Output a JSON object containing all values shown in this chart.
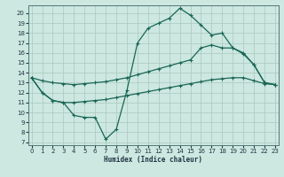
{
  "xlabel": "Humidex (Indice chaleur)",
  "bg_color": "#cce8e0",
  "grid_color": "#aac8be",
  "line_color": "#1a6655",
  "xlim": [
    -0.3,
    23.3
  ],
  "ylim": [
    6.7,
    20.8
  ],
  "xticks": [
    0,
    1,
    2,
    3,
    4,
    5,
    6,
    7,
    8,
    9,
    10,
    11,
    12,
    13,
    14,
    15,
    16,
    17,
    18,
    19,
    20,
    21,
    22,
    23
  ],
  "yticks": [
    7,
    8,
    9,
    10,
    11,
    12,
    13,
    14,
    15,
    16,
    17,
    18,
    19,
    20
  ],
  "line1_x": [
    0,
    1,
    2,
    3,
    4,
    5,
    6,
    7,
    8,
    9,
    10,
    11,
    12,
    13,
    14,
    15,
    16,
    17,
    18,
    19,
    20,
    21,
    22,
    23
  ],
  "line1_y": [
    13.5,
    12.0,
    11.2,
    11.0,
    9.7,
    9.5,
    9.5,
    7.3,
    8.3,
    12.2,
    17.0,
    18.5,
    19.0,
    19.5,
    20.5,
    19.8,
    18.8,
    17.8,
    18.0,
    16.5,
    15.9,
    14.8,
    13.0,
    12.8
  ],
  "line2_x": [
    0,
    1,
    2,
    3,
    4,
    5,
    6,
    7,
    8,
    9,
    10,
    11,
    12,
    13,
    14,
    15,
    16,
    17,
    18,
    19,
    20,
    21,
    22,
    23
  ],
  "line2_y": [
    13.5,
    13.2,
    13.0,
    12.9,
    12.8,
    12.9,
    13.0,
    13.1,
    13.3,
    13.5,
    13.8,
    14.1,
    14.4,
    14.7,
    15.0,
    15.3,
    16.5,
    16.8,
    16.5,
    16.5,
    16.0,
    14.8,
    13.0,
    12.8
  ],
  "line3_x": [
    0,
    1,
    2,
    3,
    4,
    5,
    6,
    7,
    8,
    9,
    10,
    11,
    12,
    13,
    14,
    15,
    16,
    17,
    18,
    19,
    20,
    21,
    22,
    23
  ],
  "line3_y": [
    13.5,
    12.0,
    11.2,
    11.0,
    11.0,
    11.1,
    11.2,
    11.3,
    11.5,
    11.7,
    11.9,
    12.1,
    12.3,
    12.5,
    12.7,
    12.9,
    13.1,
    13.3,
    13.4,
    13.5,
    13.5,
    13.2,
    12.9,
    12.8
  ]
}
